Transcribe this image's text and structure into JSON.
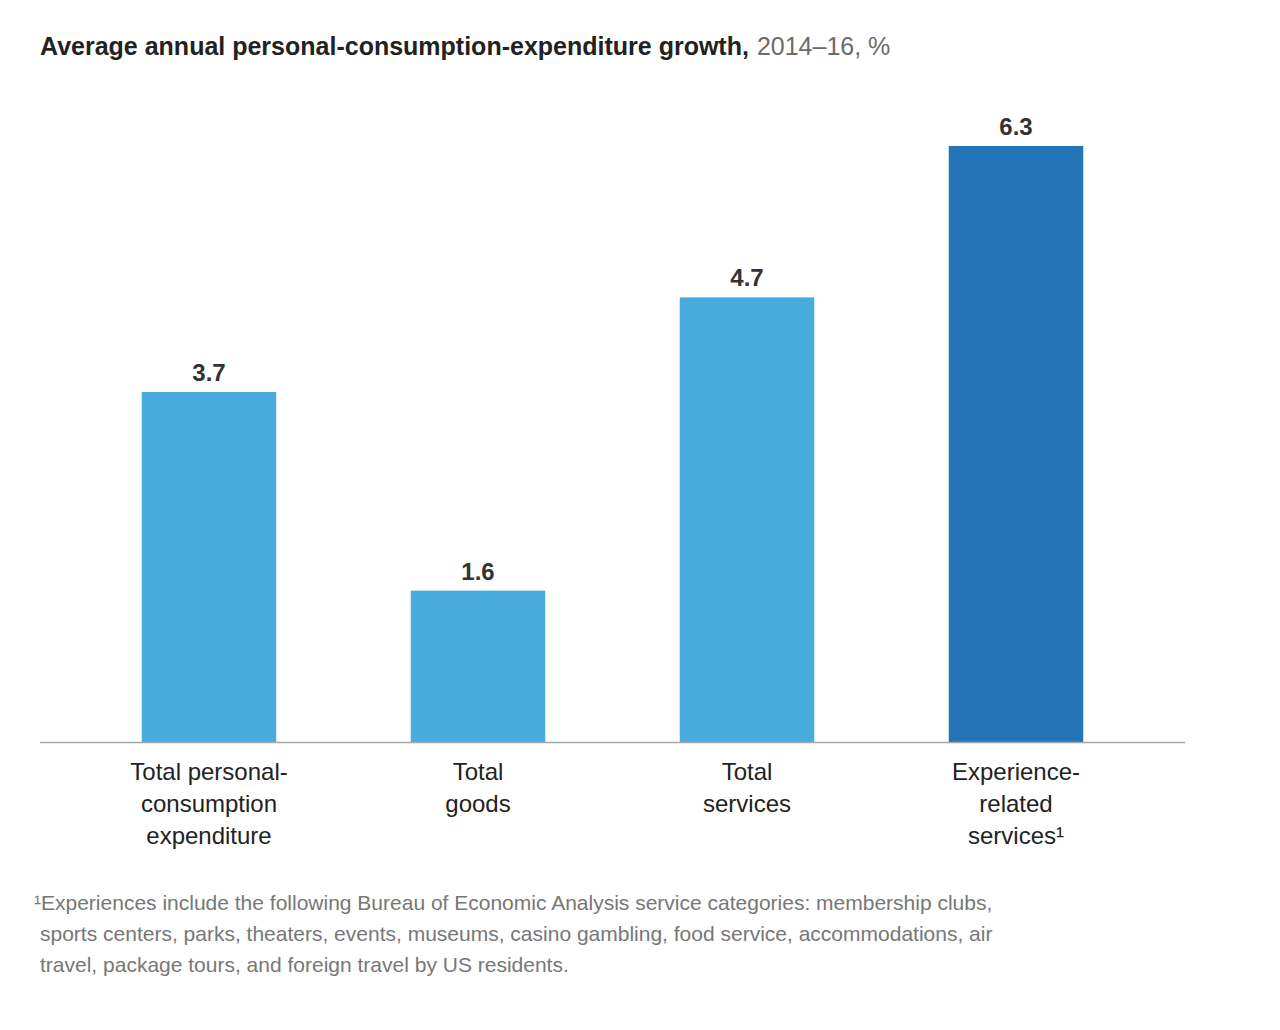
{
  "chart_data": {
    "type": "bar",
    "title": "Average annual personal-consumption-expenditure growth,",
    "subtitle": "2014–16, %",
    "categories": [
      "Total personal-\nconsumption\nexpenditure",
      "Total\ngoods",
      "Total\nservices",
      "Experience-\nrelated\nservices¹"
    ],
    "values": [
      3.7,
      1.6,
      4.7,
      6.3
    ],
    "colors": [
      "#4aabdf",
      "#4aabdf",
      "#4aabdf",
      "#2474b8"
    ],
    "ylim": [
      0,
      6.3
    ],
    "data_labels": true,
    "tick_labels": "x",
    "grid": false,
    "annotations": [
      "¹Experiences include the following Bureau of Economic Analysis service categories: membership clubs,\nsports centers, parks, theaters, events, museums, casino gambling, food service, accommodations, air\ntravel, package tours, and foreign travel by US residents."
    ]
  }
}
